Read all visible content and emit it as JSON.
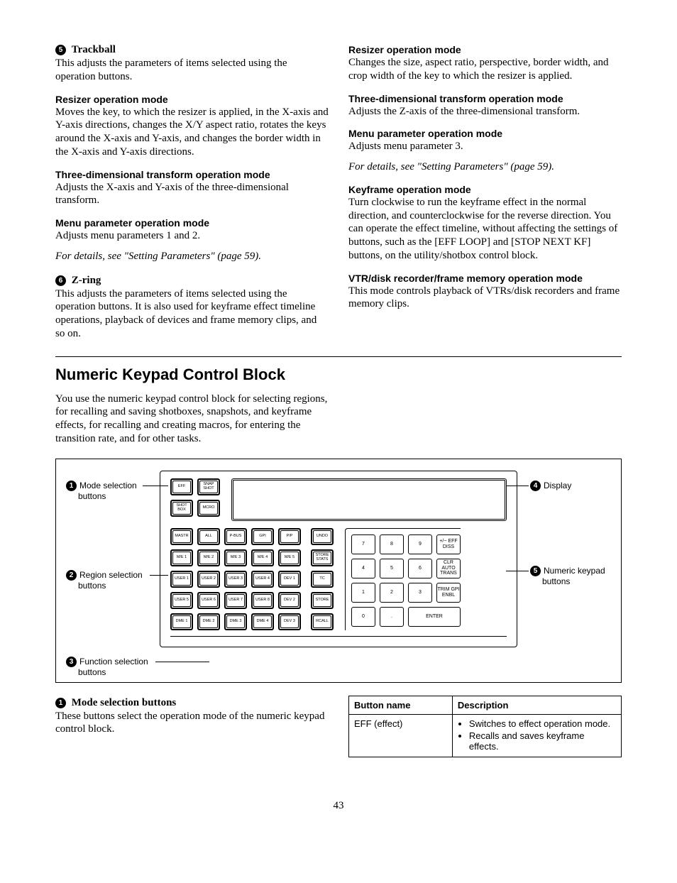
{
  "left": {
    "item5_num": "5",
    "item5_title": "Trackball",
    "item5_body": "This adjusts the parameters of items selected using the operation buttons.",
    "h1": "Resizer operation mode",
    "b1": "Moves the key, to which the resizer is applied, in the X-axis and Y-axis directions, changes the X/Y aspect ratio, rotates the keys around the X-axis and Y-axis, and changes the border width in the X-axis and Y-axis directions.",
    "h2": "Three-dimensional transform operation mode",
    "b2": "Adjusts the X-axis and Y-axis of the three-dimensional transform.",
    "h3": "Menu parameter operation mode",
    "b3": "Adjusts menu parameters 1 and 2.",
    "note1": "For details, see \"Setting Parameters\" (page 59).",
    "item6_num": "6",
    "item6_title": "Z-ring",
    "item6_body": "This adjusts the parameters of items selected using the operation buttons. It is also used for keyframe effect timeline operations, playback of devices and frame memory clips, and so on."
  },
  "right": {
    "h1": "Resizer operation mode",
    "b1": "Changes the size, aspect ratio, perspective, border width, and crop width of the key to which the resizer is applied.",
    "h2": "Three-dimensional transform operation mode",
    "b2": "Adjusts the Z-axis of the three-dimensional transform.",
    "h3": "Menu parameter operation mode",
    "b3": "Adjusts menu parameter 3.",
    "note1": "For details, see \"Setting Parameters\" (page 59).",
    "h4": "Keyframe operation mode",
    "b4": "Turn clockwise to run the keyframe effect in the normal direction, and counterclockwise for the reverse direction. You can operate the effect timeline, without affecting the settings of buttons, such as the [EFF LOOP] and [STOP NEXT KF] buttons, on the utility/shotbox control block.",
    "h5": "VTR/disk recorder/frame memory operation mode",
    "b5": "This mode controls playback of VTRs/disk recorders and frame memory clips."
  },
  "section_title": "Numeric Keypad Control Block",
  "section_intro": "You use the numeric keypad control block for selecting regions, for recalling and saving shotboxes, snapshots, and keyframe effects, for recalling and creating macros, for entering the transition rate, and for other tasks.",
  "callouts": {
    "c1_num": "1",
    "c1_label": "Mode selection",
    "c1_sub": "buttons",
    "c2_num": "2",
    "c2_label": "Region selection",
    "c2_sub": "buttons",
    "c3_num": "3",
    "c3_label": "Function selection",
    "c3_sub": "buttons",
    "c4_num": "4",
    "c4_label": "Display",
    "c5_num": "5",
    "c5_label": "Numeric keypad",
    "c5_sub": "buttons"
  },
  "mode_btns": [
    "EFF",
    "SNAP SHOT",
    "SHOT BOX",
    "MCRO"
  ],
  "region_btns": [
    "MASTR",
    "ALL",
    "P-BUS",
    "GPI",
    "P/P",
    "M/E 1",
    "M/E 2",
    "M/E 3",
    "M/E 4",
    "M/E 5",
    "USER 1",
    "USER 2",
    "USER 3",
    "USER 4",
    "DEV 1",
    "USER 5",
    "USER 6",
    "USER 7",
    "USER 8",
    "DEV 2",
    "DME 1",
    "DME 2",
    "DME 3",
    "DME 4",
    "DEV 3"
  ],
  "func_btns": [
    "UNDO",
    "STORE STATS",
    "TC",
    "STORE",
    "RCALL"
  ],
  "num_btns": [
    "7",
    "8",
    "9",
    "+/− EFF DISS",
    "4",
    "5",
    "6",
    "CLR AUTO TRANS",
    "1",
    "2",
    "3",
    "TRIM GPI ENBL",
    "0",
    ".",
    "ENTER"
  ],
  "bottom": {
    "num": "1",
    "title": "Mode selection buttons",
    "body": "These buttons select the operation mode of the numeric keypad control block.",
    "th1": "Button name",
    "th2": "Description",
    "row_name": "EFF (effect)",
    "li1": "Switches to effect operation mode.",
    "li2": "Recalls and saves keyframe effects."
  },
  "page": "43"
}
